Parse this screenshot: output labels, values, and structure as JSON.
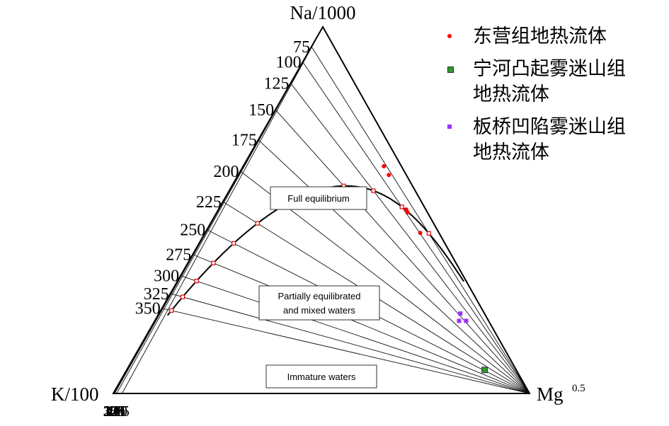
{
  "chart_data": {
    "type": "scatter",
    "subtype": "ternary Na-K-Mg geothermometer diagram (Giggenbach)",
    "title": "",
    "vertex_labels": {
      "top": "Na/1000",
      "left": "K/100",
      "right_base": "Mg",
      "right_superscript": "0.5"
    },
    "left_axis_ticks": [
      "75",
      "100",
      "125",
      "150",
      "175",
      "200",
      "225",
      "250",
      "275",
      "300",
      "325",
      "350"
    ],
    "bottom_axis_ticks": [
      "350",
      "300",
      "275",
      "250",
      "225",
      "200",
      "175",
      "150",
      "125",
      "100",
      "75"
    ],
    "na_k_temperatures_C": [
      75,
      100,
      125,
      150,
      175,
      200,
      225,
      250,
      275,
      300,
      325,
      350
    ],
    "k_mg_temperatures_C": [
      350,
      300,
      275,
      250,
      225,
      200,
      175,
      150,
      125,
      100,
      75
    ],
    "full_equilibrium_temperatures_C": [
      75,
      100,
      125,
      150,
      175,
      200,
      225,
      250,
      275,
      300,
      325,
      350
    ],
    "region_labels": {
      "full": "Full equilibrium",
      "partial_line1": "Partially equilibrated",
      "partial_line2": "and mixed waters",
      "immature": "Immature waters"
    },
    "series": [
      {
        "name": "东营组地热流体",
        "marker": "dot",
        "color": "#ff0000",
        "points_Na_K_Mg_percent": [
          [
            62.0,
            4.2,
            33.8
          ],
          [
            59.6,
            4.2,
            36.2
          ],
          [
            50.2,
            4.7,
            45.1
          ],
          [
            49.4,
            4.8,
            45.8
          ],
          [
            43.8,
            4.5,
            51.7
          ]
        ]
      },
      {
        "name": "宁河凸起雾迷山组地热流体",
        "marker": "square",
        "color": "#2e9a2e",
        "points_Na_K_Mg_percent": [
          [
            6.4,
            7.6,
            86.0
          ]
        ]
      },
      {
        "name": "板桥凹陷雾迷山组地热流体",
        "marker": "square-small",
        "color": "#9b30ff",
        "points_Na_K_Mg_percent": [
          [
            21.8,
            5.8,
            72.4
          ],
          [
            19.8,
            5.4,
            74.8
          ],
          [
            19.8,
            7.1,
            73.1
          ]
        ]
      }
    ],
    "legend_position": "top-right",
    "grid": true
  },
  "legend": {
    "item1_label": "东营组地热流体",
    "item2_line1": "宁河凸起雾迷山组",
    "item2_line2": "地热流体",
    "item3_line1": "板桥凹陷雾迷山组",
    "item3_line2": "地热流体"
  },
  "colors": {
    "series1": "#ff0000",
    "series2": "#2e9a2e",
    "series3": "#9b30ff",
    "equilibrium_marker": "#dd0000"
  }
}
